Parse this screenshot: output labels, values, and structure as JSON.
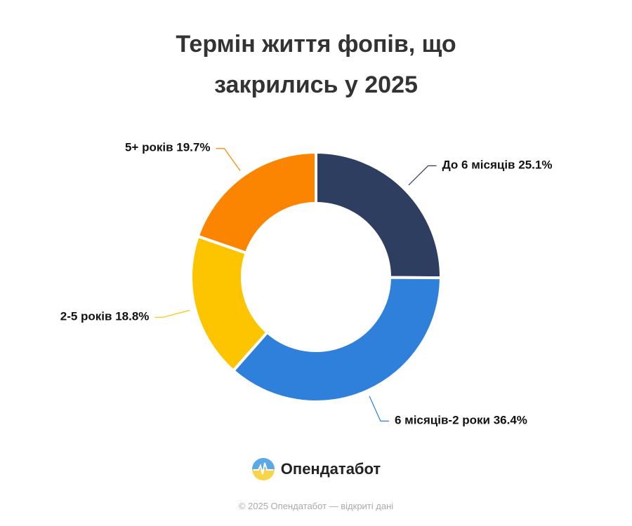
{
  "chart_data": {
    "type": "pie",
    "title": "Термін життя фопів, що закрились у 2025",
    "categories": [
      "До 6 місяців",
      "6 місяців-2 роки",
      "2-5 років",
      "5+ років"
    ],
    "values": [
      25.1,
      36.4,
      18.8,
      19.7
    ],
    "value_labels": [
      "25.1%",
      "36.4%",
      "18.8%",
      "19.7%"
    ],
    "colors": [
      "#2e3e60",
      "#2e80da",
      "#fdc400",
      "#fb8500"
    ]
  },
  "logo_text": "Опендатабот",
  "footer": "© 2025 Опендатабот — відкриті дані"
}
